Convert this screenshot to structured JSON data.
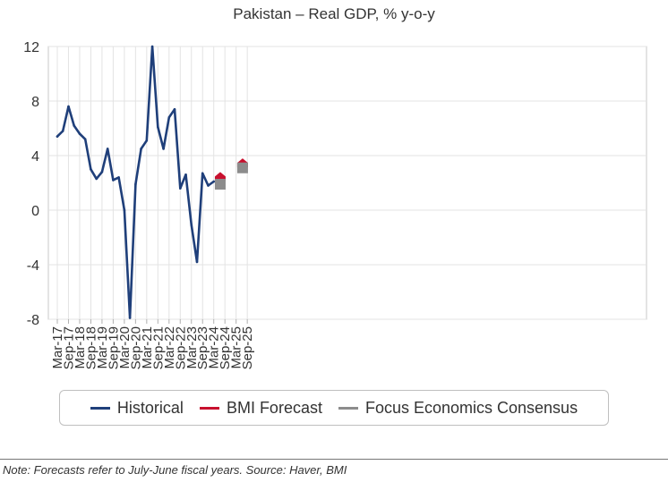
{
  "chart_data": {
    "type": "line",
    "title": "Pakistan – Real GDP, % y-o-y",
    "xlabel": "",
    "ylabel": "",
    "ylim": [
      -8,
      12
    ],
    "yticks": [
      -8,
      -4,
      0,
      4,
      8,
      12
    ],
    "x_tick_labels": [
      "Mar-17",
      "Sep-17",
      "Mar-18",
      "Sep-18",
      "Mar-19",
      "Sep-19",
      "Mar-20",
      "Sep-20",
      "Mar-21",
      "Sep-21",
      "Mar-22",
      "Sep-22",
      "Mar-23",
      "Sep-23",
      "Mar-24",
      "Sep-24",
      "Mar-25",
      "Sep-25"
    ],
    "grid": true,
    "legend_position": "bottom",
    "series": [
      {
        "name": "Historical",
        "color": "#1f3f7a",
        "style": "line",
        "x": [
          "Mar-17",
          "Jun-17",
          "Sep-17",
          "Dec-17",
          "Mar-18",
          "Jun-18",
          "Sep-18",
          "Dec-18",
          "Mar-19",
          "Jun-19",
          "Sep-19",
          "Dec-19",
          "Mar-20",
          "Jun-20",
          "Sep-20",
          "Dec-20",
          "Mar-21",
          "Jun-21",
          "Sep-21",
          "Dec-21",
          "Mar-22",
          "Jun-22",
          "Sep-22",
          "Dec-22",
          "Mar-23",
          "Jun-23",
          "Sep-23",
          "Dec-23",
          "Mar-24",
          "Jun-24"
        ],
        "values": [
          5.4,
          5.8,
          7.6,
          6.2,
          5.6,
          5.2,
          3.0,
          2.3,
          2.8,
          4.5,
          2.2,
          2.4,
          0.0,
          -7.9,
          1.9,
          4.5,
          5.1,
          12.0,
          6.1,
          4.5,
          6.8,
          7.4,
          1.6,
          2.6,
          -1.1,
          -3.8,
          2.7,
          1.8,
          2.1,
          null
        ]
      },
      {
        "name": "BMI Forecast",
        "color": "#c8102e",
        "style": "marker",
        "x": [
          "Jun-24",
          "Jun-25"
        ],
        "values": [
          2.4,
          3.4
        ]
      },
      {
        "name": "Focus Economics Consensus",
        "color": "#8c8c8c",
        "style": "marker",
        "x": [
          "Jun-24",
          "Jun-25"
        ],
        "values": [
          1.9,
          3.1
        ]
      }
    ]
  },
  "footnote": "Note: Forecasts refer to July-June fiscal years. Source: Haver, BMI"
}
